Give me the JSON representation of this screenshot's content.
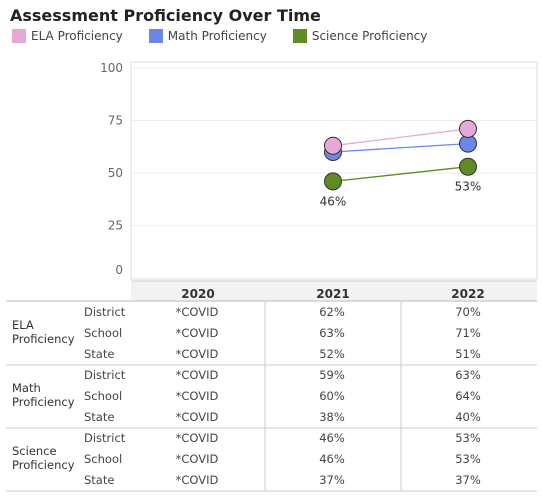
{
  "chart_data": {
    "type": "line",
    "title": "Assessment Proficiency Over Time",
    "x": [
      "2020",
      "2021",
      "2022"
    ],
    "ylim": [
      0,
      100
    ],
    "yticks": [
      0,
      25,
      50,
      75,
      100
    ],
    "legend_position": "top-left",
    "grid": true,
    "series": [
      {
        "name": "ELA Proficiency",
        "color": "#e6a8d7",
        "values": [
          null,
          63,
          71
        ]
      },
      {
        "name": "Math Proficiency",
        "color": "#6d87e6",
        "values": [
          null,
          60,
          64
        ]
      },
      {
        "name": "Science Proficiency",
        "color": "#5f8a24",
        "values": [
          null,
          46,
          53
        ]
      }
    ],
    "data_labels": [
      {
        "series": 2,
        "index": 1,
        "text": "46%"
      },
      {
        "series": 2,
        "index": 2,
        "text": "53%"
      }
    ]
  },
  "table": {
    "years": [
      "2020",
      "2021",
      "2022"
    ],
    "groups": [
      {
        "label": [
          "ELA",
          "Proficiency"
        ],
        "rows": [
          {
            "label": "District",
            "values": [
              "*COVID",
              "62%",
              "70%"
            ]
          },
          {
            "label": "School",
            "values": [
              "*COVID",
              "63%",
              "71%"
            ]
          },
          {
            "label": "State",
            "values": [
              "*COVID",
              "52%",
              "51%"
            ]
          }
        ]
      },
      {
        "label": [
          "Math",
          "Proficiency"
        ],
        "rows": [
          {
            "label": "District",
            "values": [
              "*COVID",
              "59%",
              "63%"
            ]
          },
          {
            "label": "School",
            "values": [
              "*COVID",
              "60%",
              "64%"
            ]
          },
          {
            "label": "State",
            "values": [
              "*COVID",
              "38%",
              "40%"
            ]
          }
        ]
      },
      {
        "label": [
          "Science",
          "Proficiency"
        ],
        "rows": [
          {
            "label": "District",
            "values": [
              "*COVID",
              "46%",
              "53%"
            ]
          },
          {
            "label": "School",
            "values": [
              "*COVID",
              "46%",
              "53%"
            ]
          },
          {
            "label": "State",
            "values": [
              "*COVID",
              "37%",
              "37%"
            ]
          }
        ]
      }
    ]
  }
}
